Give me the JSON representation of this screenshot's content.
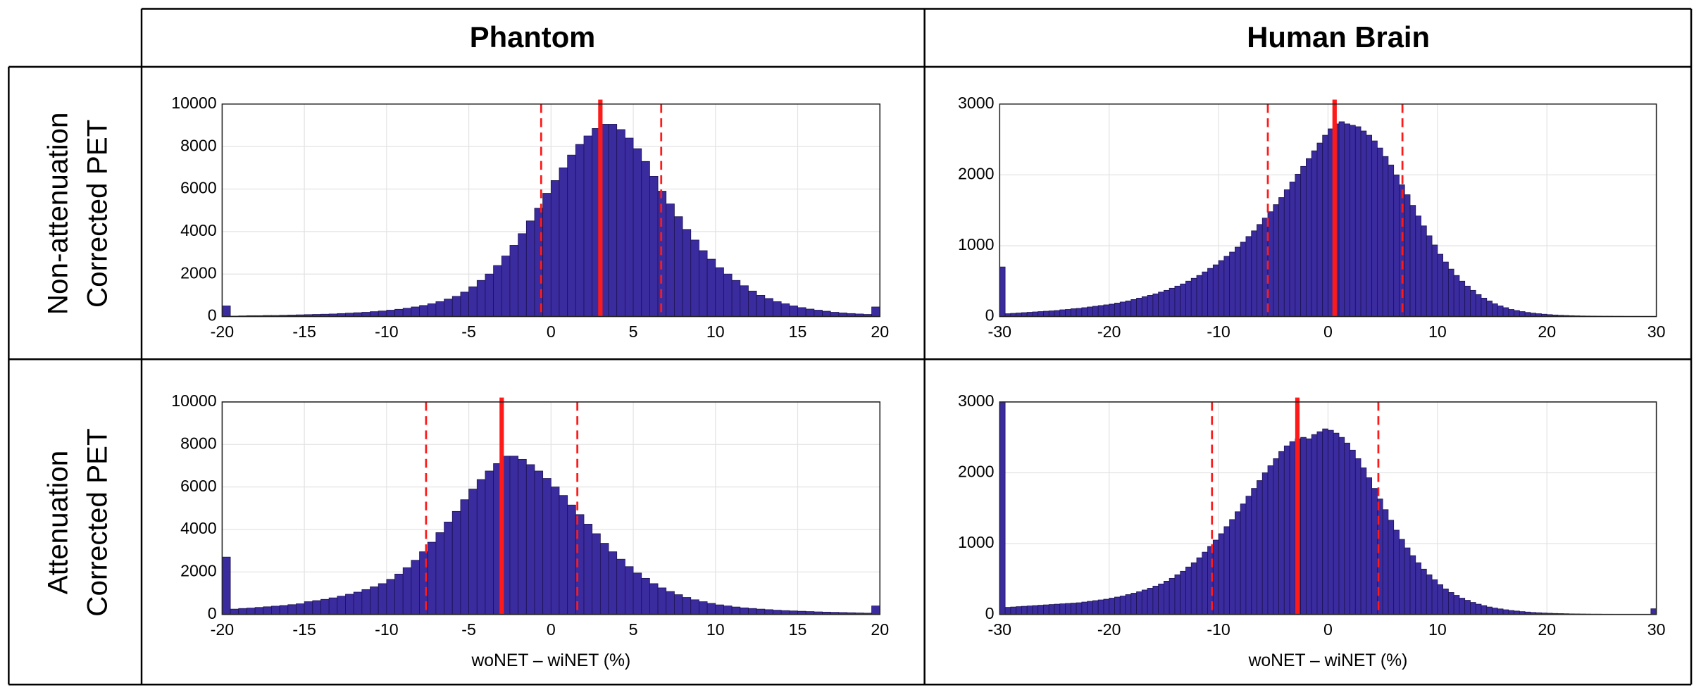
{
  "columns": [
    "Phantom",
    "Human Brain"
  ],
  "rows": [
    [
      "Non-attenuation",
      "Corrected PET"
    ],
    [
      "Attenuation",
      "Corrected PET"
    ]
  ],
  "chart_data": [
    {
      "type": "histogram",
      "color": "#3a2b9e",
      "edge_color": "#1c1250",
      "grid": true,
      "line_color": "#ff1a1a",
      "xlim": [
        -20,
        20
      ],
      "xticks": [
        -20,
        -15,
        -10,
        -5,
        0,
        5,
        10,
        15,
        20
      ],
      "ylim": [
        0,
        10000
      ],
      "yticks": [
        0,
        2000,
        4000,
        6000,
        8000,
        10000
      ],
      "bins": [
        -20,
        -19.5,
        -19,
        -18.5,
        -18,
        -17.5,
        -17,
        -16.5,
        -16,
        -15.5,
        -15,
        -14.5,
        -14,
        -13.5,
        -13,
        -12.5,
        -12,
        -11.5,
        -11,
        -10.5,
        -10,
        -9.5,
        -9,
        -8.5,
        -8,
        -7.5,
        -7,
        -6.5,
        -6,
        -5.5,
        -5,
        -4.5,
        -4,
        -3.5,
        -3,
        -2.5,
        -2,
        -1.5,
        -1,
        -0.5,
        0,
        0.5,
        1,
        1.5,
        2,
        2.5,
        3,
        3.5,
        4,
        4.5,
        5,
        5.5,
        6,
        6.5,
        7,
        7.5,
        8,
        8.5,
        9,
        9.5,
        10,
        10.5,
        11,
        11.5,
        12,
        12.5,
        13,
        13.5,
        14,
        14.5,
        15,
        15.5,
        16,
        16.5,
        17,
        17.5,
        18,
        18.5,
        19,
        19.5,
        20
      ],
      "values": [
        500,
        20,
        30,
        40,
        40,
        50,
        50,
        60,
        70,
        80,
        90,
        100,
        110,
        120,
        140,
        160,
        180,
        200,
        230,
        260,
        300,
        340,
        390,
        450,
        520,
        600,
        700,
        820,
        950,
        1150,
        1400,
        1700,
        2000,
        2400,
        2850,
        3350,
        3900,
        4500,
        5100,
        5800,
        6400,
        7000,
        7600,
        8100,
        8500,
        8850,
        9050,
        9050,
        8800,
        8400,
        7900,
        7300,
        6600,
        5900,
        5300,
        4700,
        4100,
        3600,
        3100,
        2700,
        2300,
        2000,
        1700,
        1450,
        1200,
        1000,
        850,
        700,
        600,
        500,
        420,
        350,
        300,
        250,
        200,
        170,
        140,
        120,
        100,
        450
      ],
      "lines": [
        {
          "x": 3.0,
          "style": "solid"
        },
        {
          "x": -0.6,
          "style": "dashed"
        },
        {
          "x": 6.7,
          "style": "dashed"
        }
      ]
    },
    {
      "type": "histogram",
      "color": "#3a2b9e",
      "edge_color": "#1c1250",
      "grid": true,
      "line_color": "#ff1a1a",
      "xlim": [
        -30,
        30
      ],
      "xticks": [
        -30,
        -20,
        -10,
        0,
        10,
        20,
        30
      ],
      "ylim": [
        0,
        3000
      ],
      "yticks": [
        0,
        1000,
        2000,
        3000
      ],
      "bins": [
        -30,
        -29.5,
        -29,
        -28.5,
        -28,
        -27.5,
        -27,
        -26.5,
        -26,
        -25.5,
        -25,
        -24.5,
        -24,
        -23.5,
        -23,
        -22.5,
        -22,
        -21.5,
        -21,
        -20.5,
        -20,
        -19.5,
        -19,
        -18.5,
        -18,
        -17.5,
        -17,
        -16.5,
        -16,
        -15.5,
        -15,
        -14.5,
        -14,
        -13.5,
        -13,
        -12.5,
        -12,
        -11.5,
        -11,
        -10.5,
        -10,
        -9.5,
        -9,
        -8.5,
        -8,
        -7.5,
        -7,
        -6.5,
        -6,
        -5.5,
        -5,
        -4.5,
        -4,
        -3.5,
        -3,
        -2.5,
        -2,
        -1.5,
        -1,
        -0.5,
        0,
        0.5,
        1,
        1.5,
        2,
        2.5,
        3,
        3.5,
        4,
        4.5,
        5,
        5.5,
        6,
        6.5,
        7,
        7.5,
        8,
        8.5,
        9,
        9.5,
        10,
        10.5,
        11,
        11.5,
        12,
        12.5,
        13,
        13.5,
        14,
        14.5,
        15,
        15.5,
        16,
        16.5,
        17,
        17.5,
        18,
        18.5,
        19,
        19.5,
        20,
        20.5,
        21,
        21.5,
        22,
        22.5,
        23,
        23.5,
        24,
        24.5,
        25,
        25.5,
        26,
        26.5,
        27,
        27.5,
        28,
        28.5,
        29,
        29.5,
        30
      ],
      "values": [
        700,
        40,
        45,
        50,
        55,
        60,
        65,
        70,
        75,
        80,
        85,
        95,
        100,
        110,
        115,
        125,
        135,
        145,
        155,
        165,
        175,
        190,
        205,
        220,
        240,
        260,
        280,
        300,
        320,
        345,
        370,
        400,
        430,
        460,
        500,
        540,
        580,
        630,
        680,
        730,
        790,
        850,
        910,
        980,
        1050,
        1130,
        1210,
        1300,
        1390,
        1480,
        1580,
        1680,
        1790,
        1900,
        2010,
        2120,
        2230,
        2340,
        2450,
        2560,
        2650,
        2720,
        2750,
        2720,
        2700,
        2680,
        2620,
        2560,
        2480,
        2380,
        2260,
        2140,
        2000,
        1860,
        1720,
        1570,
        1420,
        1280,
        1140,
        1010,
        880,
        770,
        670,
        580,
        500,
        430,
        370,
        310,
        260,
        220,
        180,
        150,
        125,
        100,
        85,
        70,
        58,
        48,
        40,
        33,
        27,
        22,
        18,
        15,
        12,
        10,
        8,
        7,
        6,
        5,
        4,
        4,
        3,
        3,
        2,
        2,
        2,
        1,
        1,
        1
      ],
      "lines": [
        {
          "x": 0.6,
          "style": "solid"
        },
        {
          "x": -5.5,
          "style": "dashed"
        },
        {
          "x": 6.8,
          "style": "dashed"
        }
      ]
    },
    {
      "type": "histogram",
      "color": "#3a2b9e",
      "edge_color": "#1c1250",
      "grid": true,
      "line_color": "#ff1a1a",
      "xlabel": "woNET – wiNET (%)",
      "xlim": [
        -20,
        20
      ],
      "xticks": [
        -20,
        -15,
        -10,
        -5,
        0,
        5,
        10,
        15,
        20
      ],
      "ylim": [
        0,
        10000
      ],
      "yticks": [
        0,
        2000,
        4000,
        6000,
        8000,
        10000
      ],
      "bins": [
        -20,
        -19.5,
        -19,
        -18.5,
        -18,
        -17.5,
        -17,
        -16.5,
        -16,
        -15.5,
        -15,
        -14.5,
        -14,
        -13.5,
        -13,
        -12.5,
        -12,
        -11.5,
        -11,
        -10.5,
        -10,
        -9.5,
        -9,
        -8.5,
        -8,
        -7.5,
        -7,
        -6.5,
        -6,
        -5.5,
        -5,
        -4.5,
        -4,
        -3.5,
        -3,
        -2.5,
        -2,
        -1.5,
        -1,
        -0.5,
        0,
        0.5,
        1,
        1.5,
        2,
        2.5,
        3,
        3.5,
        4,
        4.5,
        5,
        5.5,
        6,
        6.5,
        7,
        7.5,
        8,
        8.5,
        9,
        9.5,
        10,
        10.5,
        11,
        11.5,
        12,
        12.5,
        13,
        13.5,
        14,
        14.5,
        15,
        15.5,
        16,
        16.5,
        17,
        17.5,
        18,
        18.5,
        19,
        19.5,
        20
      ],
      "values": [
        2700,
        250,
        280,
        300,
        330,
        360,
        390,
        420,
        460,
        500,
        600,
        650,
        710,
        780,
        860,
        950,
        1050,
        1170,
        1300,
        1450,
        1650,
        1900,
        2200,
        2550,
        2950,
        3400,
        3850,
        4350,
        4850,
        5400,
        5900,
        6350,
        6750,
        7100,
        7450,
        7450,
        7300,
        7050,
        6750,
        6400,
        6000,
        5600,
        5150,
        4700,
        4250,
        3800,
        3350,
        2950,
        2600,
        2250,
        1950,
        1700,
        1450,
        1250,
        1080,
        930,
        800,
        690,
        600,
        520,
        450,
        400,
        350,
        310,
        280,
        250,
        225,
        200,
        180,
        165,
        150,
        135,
        120,
        110,
        100,
        90,
        80,
        70,
        60,
        400
      ],
      "lines": [
        {
          "x": -3.0,
          "style": "solid"
        },
        {
          "x": -7.6,
          "style": "dashed"
        },
        {
          "x": 1.6,
          "style": "dashed"
        }
      ]
    },
    {
      "type": "histogram",
      "color": "#3a2b9e",
      "edge_color": "#1c1250",
      "grid": true,
      "line_color": "#ff1a1a",
      "xlabel": "woNET – wiNET (%)",
      "xlim": [
        -30,
        30
      ],
      "xticks": [
        -30,
        -20,
        -10,
        0,
        10,
        20,
        30
      ],
      "ylim": [
        0,
        3000
      ],
      "yticks": [
        0,
        1000,
        2000,
        3000
      ],
      "bins": [
        -30,
        -29.5,
        -29,
        -28.5,
        -28,
        -27.5,
        -27,
        -26.5,
        -26,
        -25.5,
        -25,
        -24.5,
        -24,
        -23.5,
        -23,
        -22.5,
        -22,
        -21.5,
        -21,
        -20.5,
        -20,
        -19.5,
        -19,
        -18.5,
        -18,
        -17.5,
        -17,
        -16.5,
        -16,
        -15.5,
        -15,
        -14.5,
        -14,
        -13.5,
        -13,
        -12.5,
        -12,
        -11.5,
        -11,
        -10.5,
        -10,
        -9.5,
        -9,
        -8.5,
        -8,
        -7.5,
        -7,
        -6.5,
        -6,
        -5.5,
        -5,
        -4.5,
        -4,
        -3.5,
        -3,
        -2.5,
        -2,
        -1.5,
        -1,
        -0.5,
        0,
        0.5,
        1,
        1.5,
        2,
        2.5,
        3,
        3.5,
        4,
        4.5,
        5,
        5.5,
        6,
        6.5,
        7,
        7.5,
        8,
        8.5,
        9,
        9.5,
        10,
        10.5,
        11,
        11.5,
        12,
        12.5,
        13,
        13.5,
        14,
        14.5,
        15,
        15.5,
        16,
        16.5,
        17,
        17.5,
        18,
        18.5,
        19,
        19.5,
        20,
        20.5,
        21,
        21.5,
        22,
        22.5,
        23,
        23.5,
        24,
        24.5,
        25,
        25.5,
        26,
        26.5,
        27,
        27.5,
        28,
        28.5,
        29,
        29.5,
        30
      ],
      "values": [
        3000,
        100,
        105,
        110,
        115,
        120,
        125,
        130,
        135,
        140,
        145,
        150,
        155,
        160,
        165,
        175,
        185,
        195,
        205,
        215,
        230,
        245,
        260,
        280,
        300,
        320,
        345,
        370,
        400,
        430,
        470,
        510,
        560,
        610,
        670,
        730,
        800,
        880,
        960,
        1050,
        1140,
        1240,
        1340,
        1450,
        1560,
        1670,
        1780,
        1890,
        2000,
        2100,
        2200,
        2300,
        2380,
        2440,
        2480,
        2500,
        2480,
        2540,
        2580,
        2620,
        2600,
        2560,
        2500,
        2420,
        2320,
        2200,
        2070,
        1930,
        1780,
        1630,
        1480,
        1330,
        1190,
        1060,
        940,
        830,
        730,
        640,
        560,
        490,
        420,
        360,
        310,
        270,
        230,
        200,
        170,
        145,
        125,
        105,
        90,
        78,
        66,
        56,
        48,
        40,
        34,
        28,
        24,
        20,
        17,
        14,
        12,
        10,
        8,
        7,
        6,
        5,
        4,
        4,
        3,
        3,
        2,
        2,
        2,
        1,
        1,
        1,
        1,
        80
      ],
      "lines": [
        {
          "x": -2.8,
          "style": "solid"
        },
        {
          "x": -10.6,
          "style": "dashed"
        },
        {
          "x": 4.6,
          "style": "dashed"
        }
      ]
    }
  ]
}
